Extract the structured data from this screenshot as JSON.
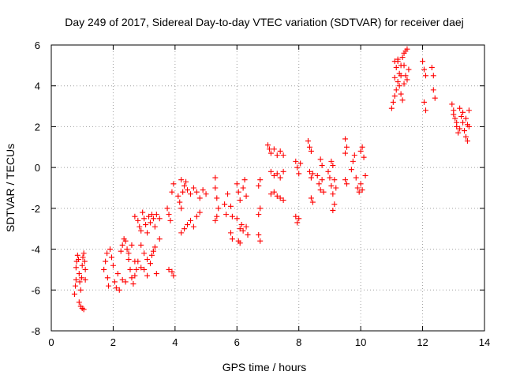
{
  "chart_data": {
    "type": "scatter",
    "title": "Day 249 of 2017, Sidereal Day-to-day VTEC variation (SDTVAR) for receiver daej",
    "xlabel": "GPS time / hours",
    "ylabel": "SDTVAR / TECUs",
    "xlim": [
      0,
      14
    ],
    "ylim": [
      -8,
      6
    ],
    "xticks": [
      "0",
      "2",
      "4",
      "6",
      "8",
      "10",
      "12",
      "14"
    ],
    "yticks": [
      "-8",
      "-6",
      "-4",
      "-2",
      "0",
      "2",
      "4",
      "6"
    ],
    "grid": true,
    "marker": "plus",
    "color": "#ff0000",
    "series": [
      {
        "points": [
          [
            0.75,
            -6.2
          ],
          [
            0.78,
            -5.8
          ],
          [
            0.8,
            -5.5
          ],
          [
            0.8,
            -4.9
          ],
          [
            0.82,
            -4.6
          ],
          [
            0.85,
            -4.3
          ],
          [
            0.88,
            -4.5
          ],
          [
            0.9,
            -5.2
          ],
          [
            0.92,
            -5.6
          ],
          [
            0.95,
            -6.0
          ],
          [
            0.98,
            -5.4
          ],
          [
            1.0,
            -4.8
          ],
          [
            1.02,
            -4.4
          ],
          [
            1.05,
            -4.2
          ],
          [
            1.08,
            -4.6
          ],
          [
            1.1,
            -5.0
          ],
          [
            1.1,
            -5.5
          ],
          [
            0.9,
            -6.6
          ],
          [
            0.95,
            -6.8
          ],
          [
            1.0,
            -6.9
          ],
          [
            1.05,
            -6.95
          ],
          [
            1.7,
            -5.0
          ],
          [
            1.75,
            -4.6
          ],
          [
            1.8,
            -4.2
          ],
          [
            1.82,
            -5.4
          ],
          [
            1.85,
            -5.8
          ],
          [
            1.9,
            -4.0
          ],
          [
            1.95,
            -4.4
          ],
          [
            2.0,
            -4.8
          ],
          [
            2.05,
            -5.6
          ],
          [
            2.1,
            -5.9
          ],
          [
            2.15,
            -5.2
          ],
          [
            2.2,
            -6.0
          ],
          [
            2.25,
            -4.1
          ],
          [
            2.3,
            -3.8
          ],
          [
            2.35,
            -3.5
          ],
          [
            2.4,
            -3.6
          ],
          [
            2.45,
            -4.0
          ],
          [
            2.5,
            -4.5
          ],
          [
            2.55,
            -5.0
          ],
          [
            2.6,
            -5.4
          ],
          [
            2.65,
            -5.7
          ],
          [
            2.7,
            -5.3
          ],
          [
            2.3,
            -5.5
          ],
          [
            2.4,
            -5.6
          ],
          [
            2.5,
            -4.2
          ],
          [
            2.6,
            -3.8
          ],
          [
            2.7,
            -4.6
          ],
          [
            2.75,
            -5.0
          ],
          [
            2.7,
            -2.4
          ],
          [
            2.8,
            -2.6
          ],
          [
            2.85,
            -2.9
          ],
          [
            2.9,
            -3.1
          ],
          [
            2.95,
            -2.2
          ],
          [
            3.0,
            -2.5
          ],
          [
            3.05,
            -2.8
          ],
          [
            3.1,
            -3.2
          ],
          [
            3.15,
            -2.4
          ],
          [
            3.2,
            -2.7
          ],
          [
            3.25,
            -2.3
          ],
          [
            3.3,
            -2.5
          ],
          [
            3.35,
            -2.9
          ],
          [
            3.4,
            -2.3
          ],
          [
            3.5,
            -2.5
          ],
          [
            2.8,
            -4.6
          ],
          [
            2.9,
            -4.9
          ],
          [
            3.0,
            -5.0
          ],
          [
            3.1,
            -5.3
          ],
          [
            3.2,
            -4.7
          ],
          [
            3.25,
            -4.3
          ],
          [
            3.3,
            -4.1
          ],
          [
            3.35,
            -3.9
          ],
          [
            3.4,
            -5.2
          ],
          [
            3.5,
            -3.5
          ],
          [
            2.9,
            -3.8
          ],
          [
            3.0,
            -4.2
          ],
          [
            3.1,
            -4.5
          ],
          [
            3.75,
            -2.0
          ],
          [
            3.8,
            -2.3
          ],
          [
            3.85,
            -2.6
          ],
          [
            3.9,
            -1.2
          ],
          [
            3.95,
            -0.8
          ],
          [
            3.9,
            -5.1
          ],
          [
            3.95,
            -5.3
          ],
          [
            3.8,
            -5.0
          ],
          [
            4.1,
            -1.4
          ],
          [
            4.15,
            -1.7
          ],
          [
            4.2,
            -2.0
          ],
          [
            4.25,
            -1.2
          ],
          [
            4.3,
            -0.9
          ],
          [
            4.4,
            -1.1
          ],
          [
            4.5,
            -1.3
          ],
          [
            4.6,
            -1.0
          ],
          [
            4.7,
            -1.2
          ],
          [
            4.8,
            -1.5
          ],
          [
            4.9,
            -1.1
          ],
          [
            5.0,
            -1.3
          ],
          [
            4.2,
            -3.2
          ],
          [
            4.3,
            -3.0
          ],
          [
            4.4,
            -2.8
          ],
          [
            4.5,
            -2.6
          ],
          [
            4.6,
            -2.9
          ],
          [
            4.7,
            -2.4
          ],
          [
            4.8,
            -2.2
          ],
          [
            4.2,
            -0.6
          ],
          [
            4.35,
            -0.7
          ],
          [
            5.3,
            -0.5
          ],
          [
            5.3,
            -1.0
          ],
          [
            5.35,
            -1.5
          ],
          [
            5.4,
            -2.0
          ],
          [
            5.35,
            -2.4
          ],
          [
            5.3,
            -2.6
          ],
          [
            5.6,
            -1.8
          ],
          [
            5.65,
            -2.3
          ],
          [
            5.7,
            -1.3
          ],
          [
            5.8,
            -1.9
          ],
          [
            5.85,
            -2.4
          ],
          [
            5.8,
            -3.2
          ],
          [
            5.85,
            -3.5
          ],
          [
            6.0,
            -0.8
          ],
          [
            6.05,
            -1.2
          ],
          [
            6.1,
            -1.6
          ],
          [
            6.15,
            -2.8
          ],
          [
            6.2,
            -3.1
          ],
          [
            6.05,
            -3.6
          ],
          [
            6.1,
            -3.7
          ],
          [
            6.2,
            -1.0
          ],
          [
            6.25,
            -0.6
          ],
          [
            6.3,
            -1.4
          ],
          [
            6.3,
            -2.9
          ],
          [
            6.35,
            -3.3
          ],
          [
            6.0,
            -2.5
          ],
          [
            6.1,
            -3.0
          ],
          [
            6.7,
            -0.9
          ],
          [
            6.75,
            -0.6
          ],
          [
            6.7,
            -2.3
          ],
          [
            6.75,
            -2.0
          ],
          [
            6.7,
            -3.3
          ],
          [
            6.75,
            -3.6
          ],
          [
            7.0,
            1.1
          ],
          [
            7.05,
            0.9
          ],
          [
            7.1,
            0.7
          ],
          [
            7.2,
            0.9
          ],
          [
            7.3,
            0.6
          ],
          [
            7.4,
            0.8
          ],
          [
            7.5,
            0.6
          ],
          [
            7.1,
            -0.2
          ],
          [
            7.2,
            -0.4
          ],
          [
            7.3,
            -0.3
          ],
          [
            7.4,
            -0.5
          ],
          [
            7.5,
            -0.2
          ],
          [
            7.1,
            -1.3
          ],
          [
            7.2,
            -1.2
          ],
          [
            7.3,
            -1.4
          ],
          [
            7.4,
            -1.5
          ],
          [
            7.5,
            -1.6
          ],
          [
            7.9,
            0.3
          ],
          [
            7.95,
            0.0
          ],
          [
            8.0,
            -0.3
          ],
          [
            8.05,
            0.2
          ],
          [
            7.9,
            -2.4
          ],
          [
            7.95,
            -2.7
          ],
          [
            8.0,
            -2.5
          ],
          [
            8.3,
            1.3
          ],
          [
            8.35,
            1.0
          ],
          [
            8.4,
            0.8
          ],
          [
            8.35,
            -0.2
          ],
          [
            8.4,
            -0.5
          ],
          [
            8.45,
            -0.3
          ],
          [
            8.4,
            -1.5
          ],
          [
            8.45,
            -1.7
          ],
          [
            8.6,
            -0.4
          ],
          [
            8.65,
            -0.8
          ],
          [
            8.7,
            -1.1
          ],
          [
            8.75,
            -0.6
          ],
          [
            8.8,
            -1.2
          ],
          [
            8.7,
            0.4
          ],
          [
            8.75,
            0.1
          ],
          [
            8.95,
            -0.2
          ],
          [
            9.0,
            -0.5
          ],
          [
            9.05,
            -0.9
          ],
          [
            9.1,
            -1.3
          ],
          [
            9.15,
            -1.8
          ],
          [
            9.1,
            -2.1
          ],
          [
            9.05,
            0.3
          ],
          [
            9.1,
            0.1
          ],
          [
            9.15,
            -0.6
          ],
          [
            9.2,
            -1.0
          ],
          [
            9.5,
            1.4
          ],
          [
            9.55,
            1.0
          ],
          [
            9.5,
            -0.6
          ],
          [
            9.55,
            -0.8
          ],
          [
            9.5,
            0.7
          ],
          [
            9.7,
            -0.1
          ],
          [
            9.75,
            0.3
          ],
          [
            9.8,
            0.6
          ],
          [
            9.85,
            -0.5
          ],
          [
            9.9,
            -1.0
          ],
          [
            9.95,
            -1.2
          ],
          [
            10.0,
            0.8
          ],
          [
            10.05,
            1.0
          ],
          [
            10.1,
            0.5
          ],
          [
            10.15,
            -0.4
          ],
          [
            10.0,
            -0.8
          ],
          [
            10.05,
            -1.1
          ],
          [
            11.0,
            2.9
          ],
          [
            11.05,
            3.2
          ],
          [
            11.1,
            3.5
          ],
          [
            11.15,
            3.8
          ],
          [
            11.2,
            4.2
          ],
          [
            11.25,
            4.6
          ],
          [
            11.3,
            5.0
          ],
          [
            11.35,
            5.4
          ],
          [
            11.4,
            5.6
          ],
          [
            11.45,
            5.7
          ],
          [
            11.5,
            5.8
          ],
          [
            11.1,
            4.4
          ],
          [
            11.15,
            4.9
          ],
          [
            11.2,
            5.2
          ],
          [
            11.25,
            4.0
          ],
          [
            11.3,
            3.6
          ],
          [
            11.35,
            3.3
          ],
          [
            11.4,
            4.1
          ],
          [
            11.45,
            4.5
          ],
          [
            11.5,
            4.3
          ],
          [
            11.55,
            4.8
          ],
          [
            11.1,
            5.2
          ],
          [
            11.2,
            5.3
          ],
          [
            11.3,
            4.5
          ],
          [
            11.4,
            5.0
          ],
          [
            12.0,
            5.2
          ],
          [
            12.05,
            4.8
          ],
          [
            12.1,
            4.5
          ],
          [
            12.05,
            3.2
          ],
          [
            12.1,
            2.8
          ],
          [
            12.3,
            4.9
          ],
          [
            12.35,
            4.5
          ],
          [
            12.35,
            3.8
          ],
          [
            12.4,
            3.4
          ],
          [
            12.95,
            3.1
          ],
          [
            13.0,
            2.8
          ],
          [
            13.05,
            2.4
          ],
          [
            13.1,
            2.0
          ],
          [
            13.15,
            1.7
          ],
          [
            13.2,
            2.9
          ],
          [
            13.25,
            2.5
          ],
          [
            13.3,
            2.2
          ],
          [
            13.35,
            1.8
          ],
          [
            13.4,
            1.5
          ],
          [
            13.45,
            1.3
          ],
          [
            13.5,
            2.8
          ],
          [
            13.5,
            2.0
          ],
          [
            13.0,
            2.6
          ],
          [
            13.1,
            2.2
          ],
          [
            13.2,
            1.9
          ],
          [
            13.3,
            2.7
          ],
          [
            13.4,
            2.4
          ],
          [
            13.45,
            2.1
          ]
        ]
      }
    ]
  }
}
